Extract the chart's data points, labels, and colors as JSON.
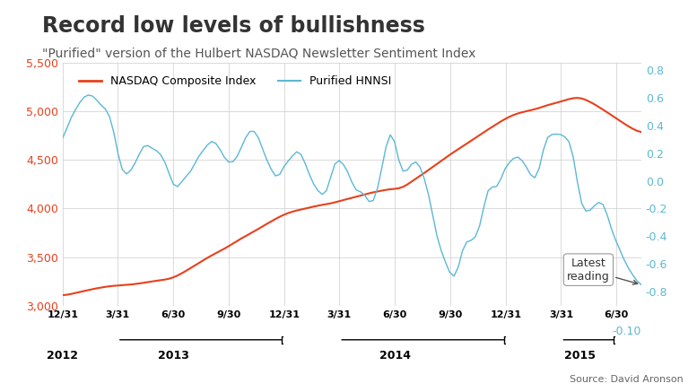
{
  "title": "Record low levels of bullishness",
  "subtitle": "\"Purified\" version of the Hulbert NASDAQ Newsletter Sentiment Index",
  "source": "Source: David Aronson",
  "nasdaq_color": "#e8401c",
  "hnnsi_color": "#5bb8d4",
  "left_ylabel_color": "#e8401c",
  "right_ylabel_color": "#5bb8d4",
  "nasdaq_label": "NASDAQ Composite Index",
  "hnnsi_label": "Purified HNNSI",
  "ylim_left": [
    3000,
    5500
  ],
  "ylim_right": [
    -0.9,
    0.85
  ],
  "yticks_left": [
    3000,
    3500,
    4000,
    4500,
    5000,
    5500
  ],
  "yticks_right": [
    -0.8,
    -0.6,
    -0.4,
    -0.2,
    0.0,
    0.2,
    0.4,
    0.6,
    0.8
  ],
  "right_bottom_label": "-0.10",
  "annotation_text": "Latest\nreading",
  "background_color": "#ffffff",
  "grid_color": "#cccccc"
}
